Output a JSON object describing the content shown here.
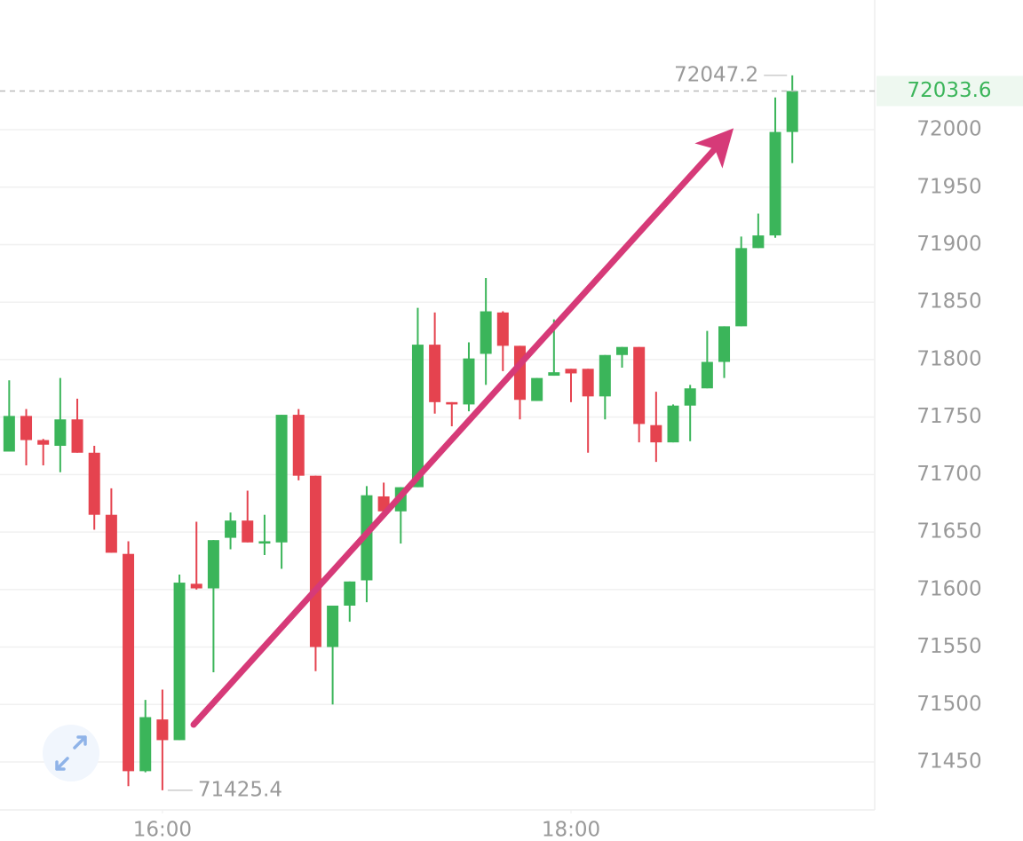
{
  "chart_data": {
    "type": "candlestick",
    "x": [
      915,
      920,
      925,
      930,
      935,
      940,
      945,
      950,
      955,
      960,
      965,
      970,
      975,
      980,
      985,
      990,
      995,
      1000,
      1005,
      1010,
      1015,
      1020,
      1025,
      1030,
      1035,
      1040,
      1045,
      1050,
      1055,
      1060,
      1065,
      1070,
      1075,
      1080,
      1085,
      1090,
      1095,
      1100,
      1105,
      1110,
      1115,
      1120,
      1125,
      1130,
      1135,
      1140,
      1145
    ],
    "open": [
      71720,
      71751,
      71730,
      71725,
      71748,
      71719,
      71665,
      71631,
      71442,
      71487,
      71469,
      71605,
      71601,
      71645,
      71660,
      71640,
      71641,
      71752,
      71699,
      71550,
      71586,
      71608,
      71681,
      71668,
      71689,
      71813,
      71763,
      71761,
      71805,
      71841,
      71812,
      71764,
      71786,
      71792,
      71792,
      71768,
      71804,
      71811,
      71743,
      71728,
      71760,
      71775,
      71798,
      71829,
      71897,
      71908,
      71998
    ],
    "high": [
      71782,
      71757,
      71731,
      71784,
      71766,
      71725,
      71688,
      71642,
      71504,
      71513,
      71613,
      71659,
      71643,
      71667,
      71686,
      71665,
      71752,
      71757,
      71699,
      71586,
      71607,
      71690,
      71693,
      71689,
      71845,
      71841,
      71763,
      71815,
      71871,
      71842,
      71812,
      71784,
      71835,
      71792,
      71792,
      71804,
      71811,
      71811,
      71772,
      71761,
      71778,
      71825,
      71829,
      71907,
      71927,
      72028,
      72047.2
    ],
    "low": [
      71720,
      71708,
      71708,
      71702,
      71719,
      71652,
      71632,
      71429,
      71441,
      71425.4,
      71469,
      71600,
      71528,
      71635,
      71641,
      71630,
      71618,
      71695,
      71529,
      71500,
      71572,
      71589,
      71665,
      71640,
      71689,
      71753,
      71742,
      71755,
      71778,
      71790,
      71748,
      71764,
      71786,
      71763,
      71719,
      71748,
      71793,
      71728,
      71711,
      71728,
      71729,
      71775,
      71784,
      71829,
      71897,
      71906,
      71971
    ],
    "close": [
      71751,
      71730,
      71726,
      71748,
      71719,
      71665,
      71632,
      71442,
      71489,
      71469,
      71606,
      71601,
      71643,
      71660,
      71641,
      71642,
      71752,
      71699,
      71550,
      71586,
      71607,
      71682,
      71668,
      71689,
      71813,
      71763,
      71761,
      71801,
      71842,
      71812,
      71765,
      71784,
      71789,
      71788,
      71768,
      71804,
      71811,
      71744,
      71728,
      71760,
      71775,
      71798,
      71829,
      71897,
      71908,
      71998,
      72033.6
    ],
    "up_color": "#3bb55a",
    "down_color": "#e5434f",
    "xlim": [
      912.3,
      1169.2
    ],
    "ylim": [
      71408.3,
      72112.8
    ],
    "xticks": [
      {
        "value": 960,
        "label": "16:00"
      },
      {
        "value": 1080,
        "label": "18:00"
      }
    ],
    "yticks": [
      71450,
      71500,
      71550,
      71600,
      71650,
      71700,
      71750,
      71800,
      71850,
      71900,
      71950,
      72000
    ],
    "grid": true
  }
}
